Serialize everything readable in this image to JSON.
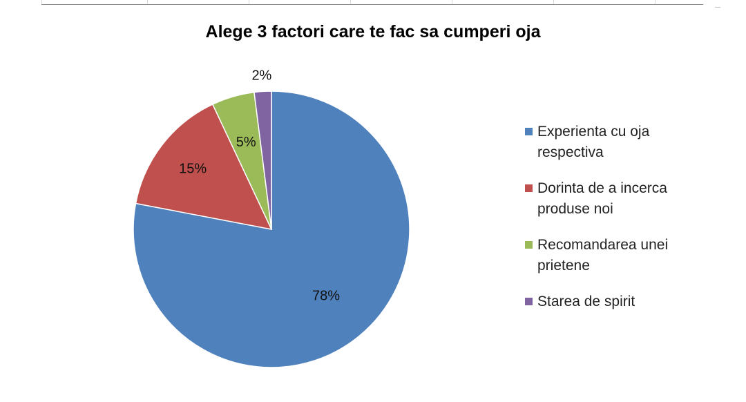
{
  "chart_data": {
    "type": "pie",
    "title": "Alege 3 factori care te fac sa cumperi oja",
    "categories": [
      "Experienta cu oja respectiva",
      "Dorinta de a incerca produse noi",
      "Recomandarea unei prietene",
      "Starea de spirit"
    ],
    "values": [
      78,
      15,
      5,
      2
    ],
    "data_labels": [
      "78%",
      "15%",
      "5%",
      "2%"
    ],
    "colors": [
      "#4f81bd",
      "#c0504d",
      "#9bbb59",
      "#8064a2"
    ],
    "legend_position": "right",
    "legend_lines": [
      [
        "Experienta cu oja",
        "respectiva"
      ],
      [
        "Dorinta de a incerca",
        "produse noi"
      ],
      [
        "Recomandarea unei",
        "prietene"
      ],
      [
        "Starea de spirit"
      ]
    ],
    "start_angle": "12 o'clock",
    "direction": "clockwise"
  }
}
